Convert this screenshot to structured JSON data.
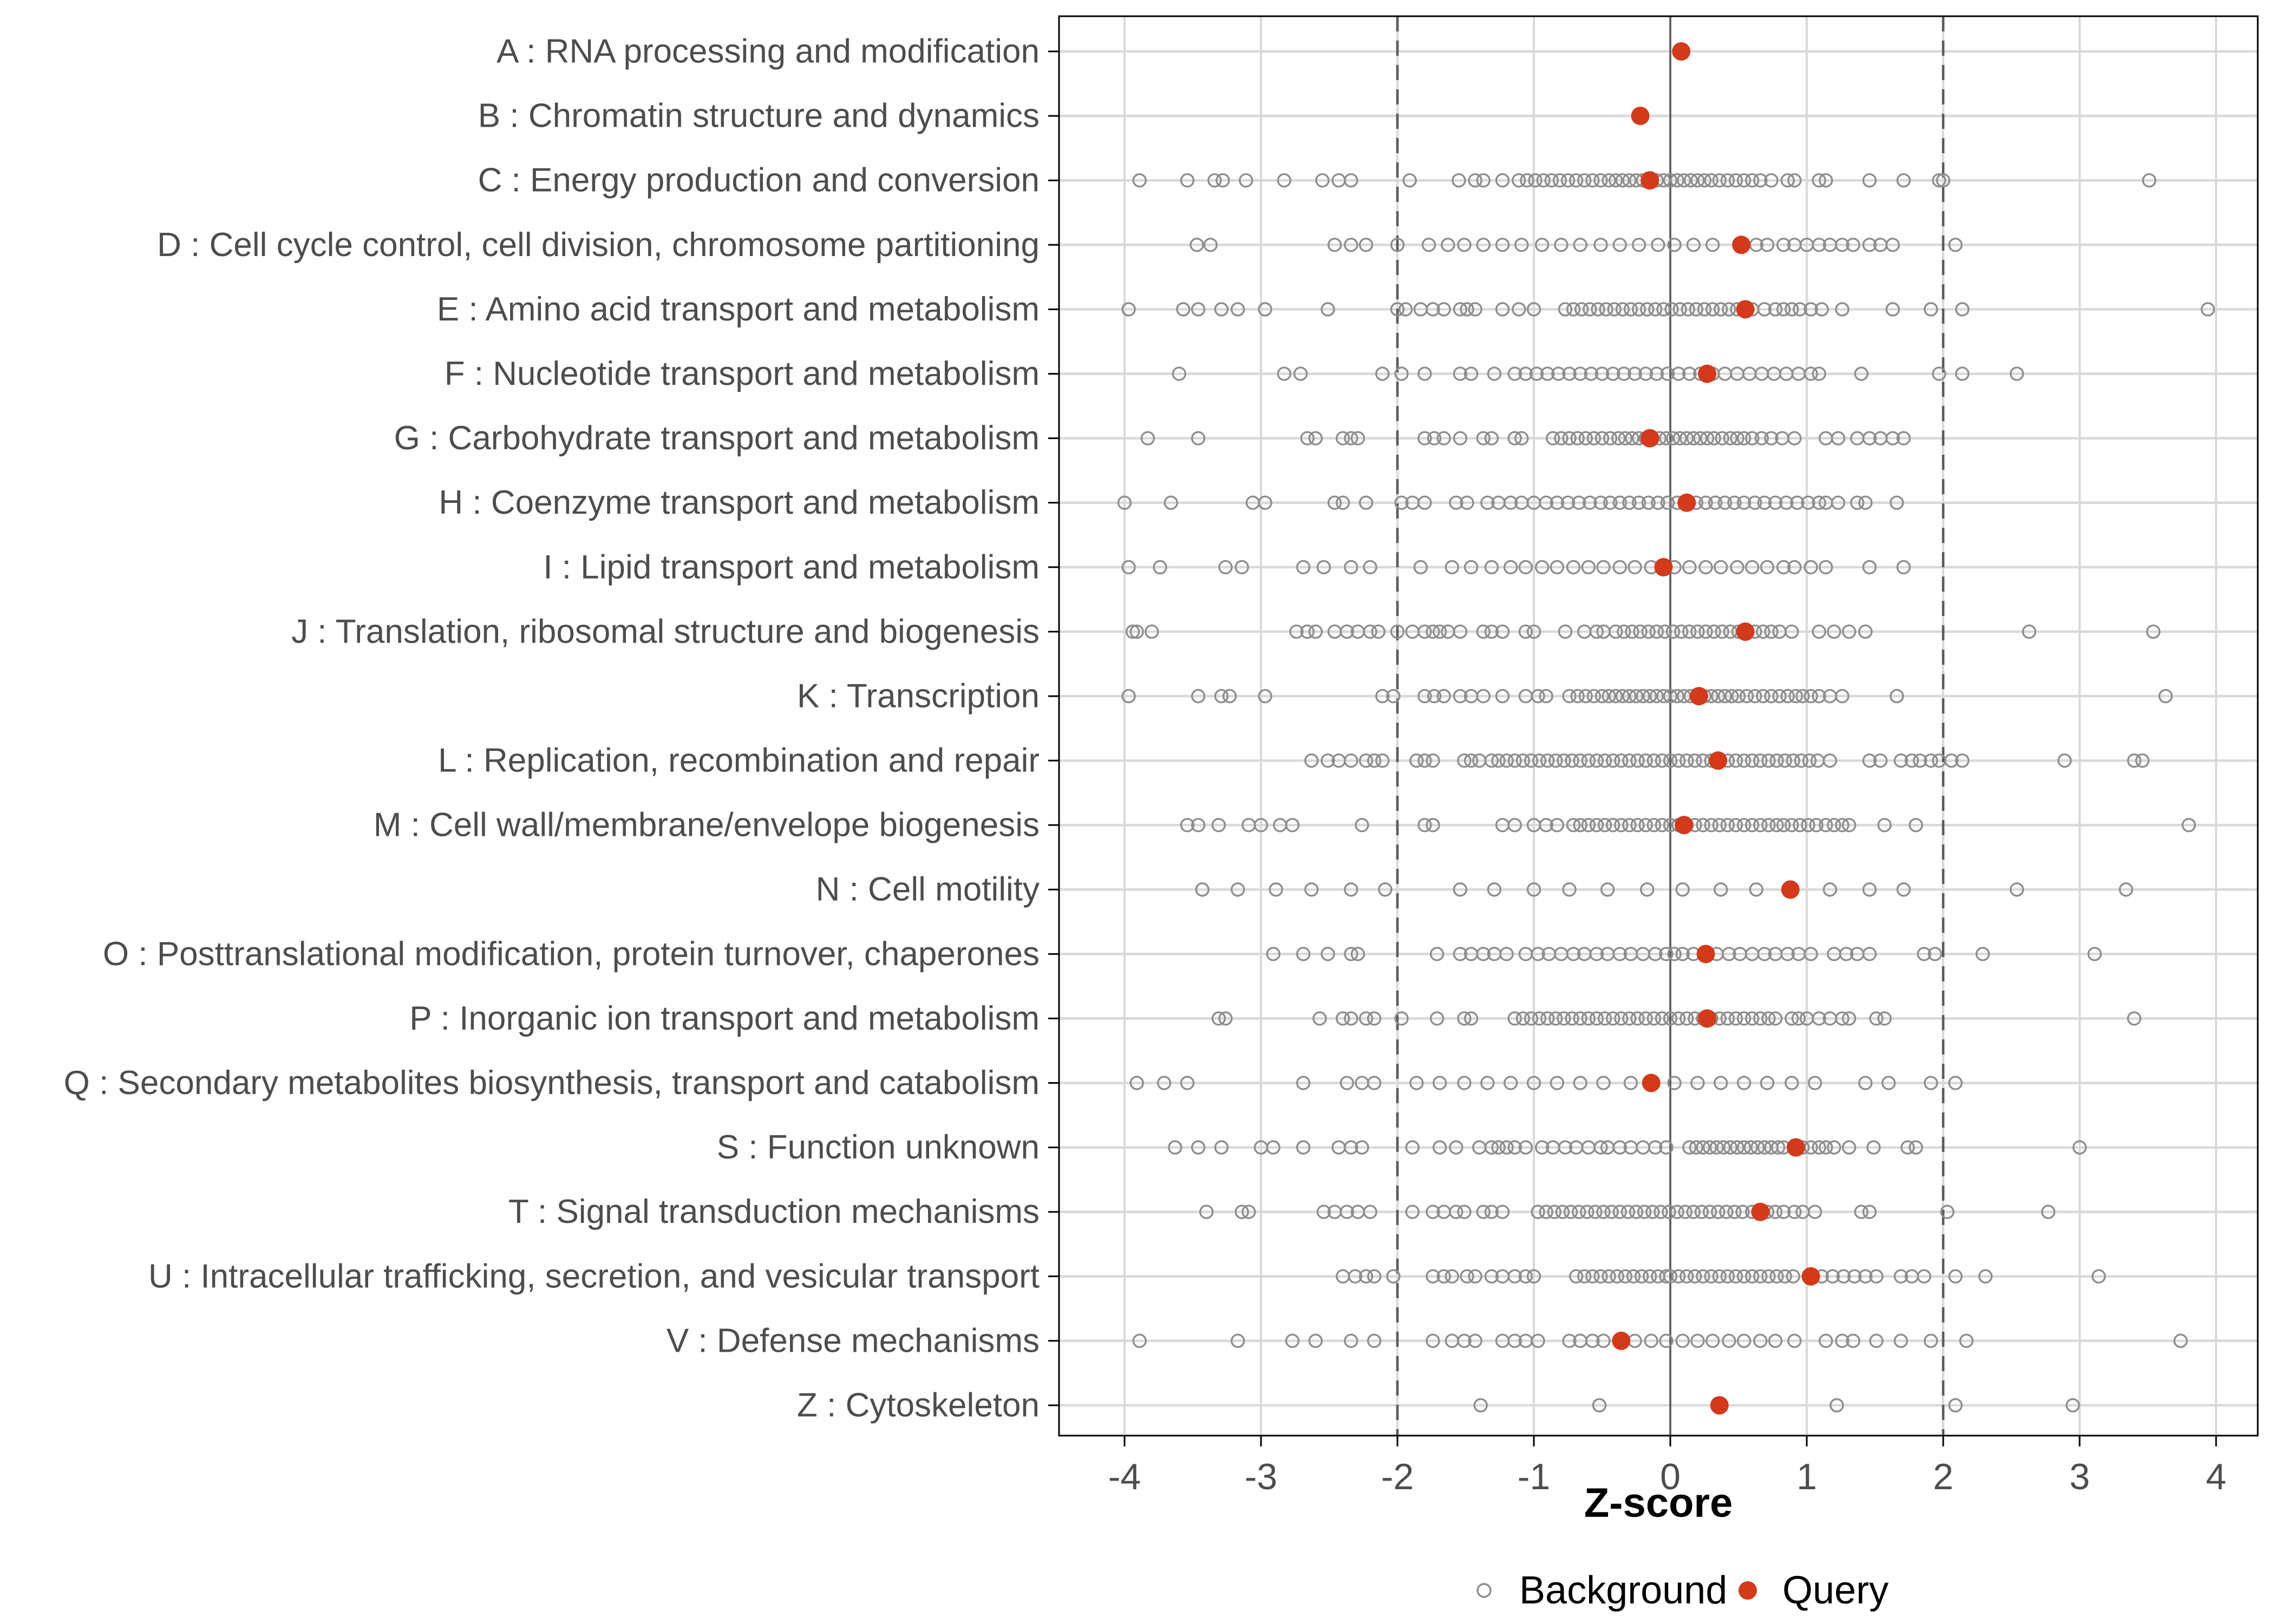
{
  "colors": {
    "query_red": "#D4391A",
    "background_gray": "#8E8E8E",
    "gridline": "#D9D9D9",
    "threshold_dashed": "#5B5B5B",
    "zero_line": "#5B5B5B",
    "tick_text": "#4D4D4D",
    "axis_black": "#000000",
    "panel_background": "#FFFFFF"
  },
  "chart_data": {
    "type": "scatter",
    "title": "",
    "xlabel": "Z-score",
    "ylabel": "",
    "xlim": [
      -4.55,
      4.3
    ],
    "x_ticks": [
      -4,
      -3,
      -2,
      -1,
      0,
      1,
      2,
      3,
      4
    ],
    "x_tick_labels": [
      "-4",
      "-3",
      "-2",
      "-1",
      "0",
      "1",
      "2",
      "3",
      "4"
    ],
    "grid": "on",
    "reference_lines": {
      "dashed_at": [
        -2,
        2
      ],
      "solid_at": 0
    },
    "legend": {
      "position": "bottom",
      "entries": [
        {
          "label": "Background",
          "marker": "open-circle",
          "color": "#8E8E8E"
        },
        {
          "label": "Query",
          "marker": "filled-circle",
          "color": "#D4391A"
        }
      ]
    },
    "series": [
      {
        "name": "Background",
        "style": "open-circle"
      },
      {
        "name": "Query",
        "style": "filled-circle"
      }
    ],
    "categories": [
      {
        "code": "A",
        "label": "A : RNA processing and modification",
        "query": 0.08,
        "background": []
      },
      {
        "code": "B",
        "label": "B : Chromatin structure and dynamics",
        "query": -0.22,
        "background": []
      },
      {
        "code": "C",
        "label": "C : Energy production and conversion",
        "query": -0.15,
        "background": [
          -3.89,
          -3.54,
          -3.34,
          -3.28,
          -3.11,
          -2.83,
          -2.55,
          -2.43,
          -2.34,
          -1.91,
          -1.55,
          -1.43,
          -1.37,
          -1.23,
          -1.11,
          -1.05,
          -0.99,
          -0.93,
          -0.87,
          -0.81,
          -0.75,
          -0.69,
          -0.63,
          -0.57,
          -0.51,
          -0.45,
          -0.4,
          -0.35,
          -0.3,
          -0.25,
          -0.2,
          -0.15,
          -0.1,
          -0.05,
          0.0,
          0.05,
          0.1,
          0.15,
          0.2,
          0.25,
          0.3,
          0.36,
          0.42,
          0.48,
          0.54,
          0.6,
          0.66,
          0.74,
          0.86,
          0.91,
          1.09,
          1.14,
          1.46,
          1.71,
          1.97,
          2.0,
          3.51
        ]
      },
      {
        "code": "D",
        "label": "D : Cell cycle control, cell division, chromosome partitioning",
        "query": 0.52,
        "background": [
          -3.47,
          -3.37,
          -2.46,
          -2.34,
          -2.23,
          -2.0,
          -1.77,
          -1.63,
          -1.51,
          -1.37,
          -1.23,
          -1.09,
          -0.94,
          -0.8,
          -0.66,
          -0.51,
          -0.37,
          -0.23,
          -0.09,
          0.03,
          0.17,
          0.31,
          0.63,
          0.71,
          0.83,
          0.91,
          1.0,
          1.09,
          1.17,
          1.26,
          1.34,
          1.46,
          1.54,
          1.63,
          2.09
        ]
      },
      {
        "code": "E",
        "label": "E : Amino acid transport and metabolism",
        "query": 0.55,
        "background": [
          -3.97,
          -3.57,
          -3.46,
          -3.29,
          -3.17,
          -2.97,
          -2.51,
          -2.0,
          -1.94,
          -1.83,
          -1.74,
          -1.66,
          -1.54,
          -1.49,
          -1.43,
          -1.23,
          -1.11,
          -1.0,
          -0.77,
          -0.71,
          -0.65,
          -0.59,
          -0.53,
          -0.47,
          -0.41,
          -0.35,
          -0.29,
          -0.23,
          -0.17,
          -0.11,
          -0.05,
          0.01,
          0.07,
          0.13,
          0.19,
          0.25,
          0.31,
          0.37,
          0.43,
          0.49,
          0.54,
          0.6,
          0.69,
          0.77,
          0.83,
          0.89,
          0.95,
          1.03,
          1.11,
          1.26,
          1.63,
          1.91,
          2.14,
          3.94
        ]
      },
      {
        "code": "F",
        "label": "F : Nucleotide transport and metabolism",
        "query": 0.27,
        "background": [
          -3.6,
          -2.83,
          -2.71,
          -2.11,
          -1.97,
          -1.8,
          -1.54,
          -1.46,
          -1.29,
          -1.14,
          -1.06,
          -0.98,
          -0.9,
          -0.82,
          -0.74,
          -0.66,
          -0.58,
          -0.5,
          -0.42,
          -0.34,
          -0.26,
          -0.18,
          -0.1,
          -0.02,
          0.06,
          0.14,
          0.22,
          0.31,
          0.4,
          0.49,
          0.58,
          0.67,
          0.76,
          0.85,
          0.94,
          1.03,
          1.09,
          1.4,
          1.97,
          2.14,
          2.54
        ]
      },
      {
        "code": "G",
        "label": "G : Carbohydrate transport and metabolism",
        "query": -0.15,
        "background": [
          -3.83,
          -3.46,
          -2.66,
          -2.6,
          -2.4,
          -2.34,
          -2.29,
          -1.8,
          -1.73,
          -1.66,
          -1.54,
          -1.37,
          -1.31,
          -1.14,
          -1.09,
          -0.86,
          -0.8,
          -0.74,
          -0.68,
          -0.62,
          -0.56,
          -0.5,
          -0.44,
          -0.38,
          -0.33,
          -0.28,
          -0.23,
          -0.18,
          -0.13,
          -0.08,
          -0.03,
          0.02,
          0.07,
          0.12,
          0.17,
          0.22,
          0.27,
          0.32,
          0.38,
          0.44,
          0.49,
          0.54,
          0.6,
          0.67,
          0.74,
          0.82,
          0.91,
          1.14,
          1.23,
          1.37,
          1.46,
          1.54,
          1.63,
          1.71
        ]
      },
      {
        "code": "H",
        "label": "H : Coenzyme transport and metabolism",
        "query": 0.12,
        "background": [
          -4.0,
          -3.66,
          -3.06,
          -2.97,
          -2.46,
          -2.4,
          -2.23,
          -1.97,
          -1.89,
          -1.8,
          -1.57,
          -1.49,
          -1.34,
          -1.26,
          -1.17,
          -1.09,
          -1.0,
          -0.91,
          -0.83,
          -0.75,
          -0.67,
          -0.59,
          -0.51,
          -0.44,
          -0.37,
          -0.3,
          -0.23,
          -0.16,
          -0.09,
          -0.02,
          0.05,
          0.12,
          0.19,
          0.26,
          0.33,
          0.4,
          0.47,
          0.54,
          0.62,
          0.69,
          0.77,
          0.85,
          0.93,
          1.01,
          1.09,
          1.14,
          1.23,
          1.37,
          1.43,
          1.66
        ]
      },
      {
        "code": "I",
        "label": "I : Lipid transport and metabolism",
        "query": -0.05,
        "background": [
          -3.97,
          -3.74,
          -3.26,
          -3.14,
          -2.69,
          -2.54,
          -2.34,
          -2.2,
          -1.83,
          -1.6,
          -1.46,
          -1.31,
          -1.17,
          -1.06,
          -0.94,
          -0.83,
          -0.71,
          -0.6,
          -0.49,
          -0.37,
          -0.26,
          -0.14,
          0.03,
          0.14,
          0.26,
          0.37,
          0.49,
          0.6,
          0.71,
          0.83,
          0.91,
          1.03,
          1.14,
          1.46,
          1.71
        ]
      },
      {
        "code": "J",
        "label": "J : Translation, ribosomal structure and biogenesis",
        "query": 0.55,
        "background": [
          -3.94,
          -3.91,
          -3.8,
          -2.74,
          -2.66,
          -2.6,
          -2.46,
          -2.37,
          -2.29,
          -2.2,
          -2.14,
          -2.0,
          -1.89,
          -1.8,
          -1.74,
          -1.69,
          -1.63,
          -1.54,
          -1.37,
          -1.31,
          -1.23,
          -1.06,
          -1.0,
          -0.77,
          -0.63,
          -0.54,
          -0.49,
          -0.4,
          -0.34,
          -0.28,
          -0.22,
          -0.16,
          -0.1,
          -0.04,
          0.02,
          0.08,
          0.14,
          0.2,
          0.26,
          0.32,
          0.38,
          0.44,
          0.5,
          0.56,
          0.62,
          0.68,
          0.74,
          0.8,
          0.89,
          1.09,
          1.2,
          1.31,
          1.43,
          2.63,
          3.54
        ]
      },
      {
        "code": "K",
        "label": "K : Transcription",
        "query": 0.21,
        "background": [
          -3.97,
          -3.46,
          -3.29,
          -3.23,
          -2.97,
          -2.11,
          -2.03,
          -1.8,
          -1.73,
          -1.66,
          -1.54,
          -1.46,
          -1.37,
          -1.23,
          -1.06,
          -0.97,
          -0.91,
          -0.74,
          -0.68,
          -0.62,
          -0.56,
          -0.5,
          -0.45,
          -0.4,
          -0.35,
          -0.3,
          -0.25,
          -0.2,
          -0.15,
          -0.1,
          -0.05,
          0.0,
          0.05,
          0.1,
          0.15,
          0.2,
          0.25,
          0.3,
          0.35,
          0.4,
          0.45,
          0.5,
          0.56,
          0.62,
          0.68,
          0.74,
          0.8,
          0.86,
          0.92,
          0.97,
          1.03,
          1.09,
          1.17,
          1.26,
          1.66,
          3.63
        ]
      },
      {
        "code": "L",
        "label": "L : Replication, recombination and repair",
        "query": 0.35,
        "background": [
          -2.63,
          -2.51,
          -2.43,
          -2.34,
          -2.23,
          -2.17,
          -2.11,
          -1.86,
          -1.8,
          -1.74,
          -1.51,
          -1.46,
          -1.4,
          -1.31,
          -1.26,
          -1.2,
          -1.14,
          -1.08,
          -1.02,
          -0.96,
          -0.9,
          -0.84,
          -0.78,
          -0.72,
          -0.66,
          -0.6,
          -0.54,
          -0.48,
          -0.42,
          -0.36,
          -0.3,
          -0.24,
          -0.18,
          -0.12,
          -0.06,
          0.0,
          0.06,
          0.12,
          0.18,
          0.24,
          0.3,
          0.36,
          0.42,
          0.48,
          0.54,
          0.6,
          0.66,
          0.72,
          0.78,
          0.84,
          0.9,
          0.96,
          1.02,
          1.08,
          1.17,
          1.46,
          1.54,
          1.69,
          1.77,
          1.83,
          1.91,
          1.97,
          2.06,
          2.14,
          2.89,
          3.4,
          3.46
        ]
      },
      {
        "code": "M",
        "label": "M : Cell wall/membrane/envelope biogenesis",
        "query": 0.1,
        "background": [
          -3.54,
          -3.46,
          -3.31,
          -3.09,
          -3.0,
          -2.86,
          -2.77,
          -2.26,
          -1.8,
          -1.74,
          -1.23,
          -1.14,
          -1.0,
          -0.91,
          -0.83,
          -0.71,
          -0.66,
          -0.6,
          -0.54,
          -0.48,
          -0.42,
          -0.36,
          -0.3,
          -0.24,
          -0.18,
          -0.12,
          -0.06,
          0.0,
          0.06,
          0.12,
          0.18,
          0.24,
          0.3,
          0.36,
          0.42,
          0.48,
          0.54,
          0.6,
          0.66,
          0.72,
          0.78,
          0.83,
          0.89,
          0.95,
          1.01,
          1.07,
          1.14,
          1.2,
          1.26,
          1.31,
          1.57,
          1.8,
          3.8
        ]
      },
      {
        "code": "N",
        "label": "N : Cell motility",
        "query": 0.88,
        "background": [
          -3.43,
          -3.17,
          -2.89,
          -2.63,
          -2.34,
          -2.09,
          -1.54,
          -1.29,
          -1.0,
          -0.74,
          -0.46,
          -0.17,
          0.09,
          0.37,
          0.63,
          1.17,
          1.46,
          1.71,
          2.54,
          3.34
        ]
      },
      {
        "code": "O",
        "label": "O : Posttranslational modification, protein turnover, chaperones",
        "query": 0.26,
        "background": [
          -2.91,
          -2.69,
          -2.51,
          -2.34,
          -2.29,
          -1.71,
          -1.54,
          -1.46,
          -1.37,
          -1.29,
          -1.2,
          -1.06,
          -0.97,
          -0.89,
          -0.8,
          -0.71,
          -0.63,
          -0.54,
          -0.46,
          -0.37,
          -0.29,
          -0.2,
          -0.11,
          -0.03,
          0.03,
          0.09,
          0.17,
          0.26,
          0.34,
          0.43,
          0.51,
          0.6,
          0.69,
          0.77,
          0.86,
          0.94,
          1.03,
          1.2,
          1.29,
          1.37,
          1.46,
          1.86,
          1.94,
          2.29,
          3.11
        ]
      },
      {
        "code": "P",
        "label": "P : Inorganic ion transport and metabolism",
        "query": 0.27,
        "background": [
          -3.31,
          -3.26,
          -2.57,
          -2.4,
          -2.34,
          -2.23,
          -2.17,
          -1.97,
          -1.71,
          -1.51,
          -1.46,
          -1.14,
          -1.08,
          -1.02,
          -0.96,
          -0.9,
          -0.84,
          -0.78,
          -0.72,
          -0.66,
          -0.6,
          -0.54,
          -0.48,
          -0.42,
          -0.36,
          -0.3,
          -0.24,
          -0.18,
          -0.12,
          -0.06,
          0.0,
          0.06,
          0.12,
          0.18,
          0.24,
          0.3,
          0.36,
          0.42,
          0.48,
          0.54,
          0.6,
          0.66,
          0.72,
          0.77,
          0.89,
          0.94,
          1.0,
          1.09,
          1.17,
          1.26,
          1.31,
          1.51,
          1.57,
          3.4
        ]
      },
      {
        "code": "Q",
        "label": "Q : Secondary metabolites biosynthesis, transport and catabolism",
        "query": -0.14,
        "background": [
          -3.91,
          -3.71,
          -3.54,
          -2.69,
          -2.37,
          -2.26,
          -2.17,
          -1.86,
          -1.69,
          -1.51,
          -1.34,
          -1.17,
          -1.0,
          -0.83,
          -0.66,
          -0.49,
          -0.29,
          0.03,
          0.2,
          0.37,
          0.54,
          0.71,
          0.89,
          1.06,
          1.43,
          1.6,
          1.91,
          2.09
        ]
      },
      {
        "code": "S",
        "label": "S : Function unknown",
        "query": 0.92,
        "background": [
          -3.63,
          -3.46,
          -3.29,
          -3.0,
          -2.91,
          -2.69,
          -2.43,
          -2.34,
          -2.26,
          -1.89,
          -1.69,
          -1.57,
          -1.4,
          -1.31,
          -1.26,
          -1.2,
          -1.14,
          -1.06,
          -0.94,
          -0.86,
          -0.77,
          -0.69,
          -0.6,
          -0.51,
          -0.46,
          -0.37,
          -0.29,
          -0.2,
          -0.11,
          -0.03,
          0.14,
          0.19,
          0.24,
          0.29,
          0.34,
          0.39,
          0.44,
          0.49,
          0.54,
          0.59,
          0.64,
          0.69,
          0.74,
          0.79,
          0.83,
          0.97,
          1.03,
          1.09,
          1.14,
          1.2,
          1.31,
          1.49,
          1.74,
          1.8,
          3.0
        ]
      },
      {
        "code": "T",
        "label": "T : Signal transduction mechanisms",
        "query": 0.66,
        "background": [
          -3.4,
          -3.14,
          -3.09,
          -2.54,
          -2.46,
          -2.37,
          -2.29,
          -2.2,
          -1.89,
          -1.74,
          -1.66,
          -1.57,
          -1.51,
          -1.37,
          -1.31,
          -1.23,
          -0.97,
          -0.91,
          -0.85,
          -0.79,
          -0.73,
          -0.67,
          -0.61,
          -0.55,
          -0.49,
          -0.43,
          -0.37,
          -0.31,
          -0.25,
          -0.19,
          -0.13,
          -0.07,
          -0.01,
          0.05,
          0.11,
          0.17,
          0.23,
          0.29,
          0.35,
          0.41,
          0.47,
          0.53,
          0.6,
          0.71,
          0.77,
          0.83,
          0.91,
          0.97,
          1.06,
          1.4,
          1.46,
          2.03,
          2.77
        ]
      },
      {
        "code": "U",
        "label": "U : Intracellular trafficking, secretion, and vesicular transport",
        "query": 1.03,
        "background": [
          -2.4,
          -2.31,
          -2.23,
          -2.17,
          -2.03,
          -1.74,
          -1.66,
          -1.6,
          -1.49,
          -1.43,
          -1.31,
          -1.23,
          -1.14,
          -1.06,
          -1.0,
          -0.69,
          -0.63,
          -0.57,
          -0.51,
          -0.45,
          -0.39,
          -0.33,
          -0.27,
          -0.21,
          -0.15,
          -0.09,
          -0.03,
          0.0,
          0.06,
          0.12,
          0.18,
          0.24,
          0.3,
          0.36,
          0.42,
          0.48,
          0.54,
          0.6,
          0.66,
          0.72,
          0.78,
          0.84,
          0.9,
          1.11,
          1.19,
          1.27,
          1.35,
          1.43,
          1.51,
          1.69,
          1.77,
          1.86,
          2.09,
          2.31,
          3.14
        ]
      },
      {
        "code": "V",
        "label": "V : Defense mechanisms",
        "query": -0.36,
        "background": [
          -3.89,
          -3.17,
          -2.77,
          -2.6,
          -2.34,
          -2.17,
          -1.74,
          -1.6,
          -1.51,
          -1.43,
          -1.23,
          -1.14,
          -1.06,
          -0.97,
          -0.74,
          -0.66,
          -0.57,
          -0.49,
          -0.26,
          -0.14,
          -0.03,
          0.09,
          0.2,
          0.31,
          0.43,
          0.54,
          0.66,
          0.77,
          0.91,
          1.14,
          1.26,
          1.34,
          1.51,
          1.69,
          1.91,
          2.17,
          3.74
        ]
      },
      {
        "code": "Z",
        "label": "Z : Cytoskeleton",
        "query": 0.36,
        "background": [
          -1.39,
          -0.52,
          1.22,
          2.09,
          2.95
        ]
      }
    ]
  }
}
